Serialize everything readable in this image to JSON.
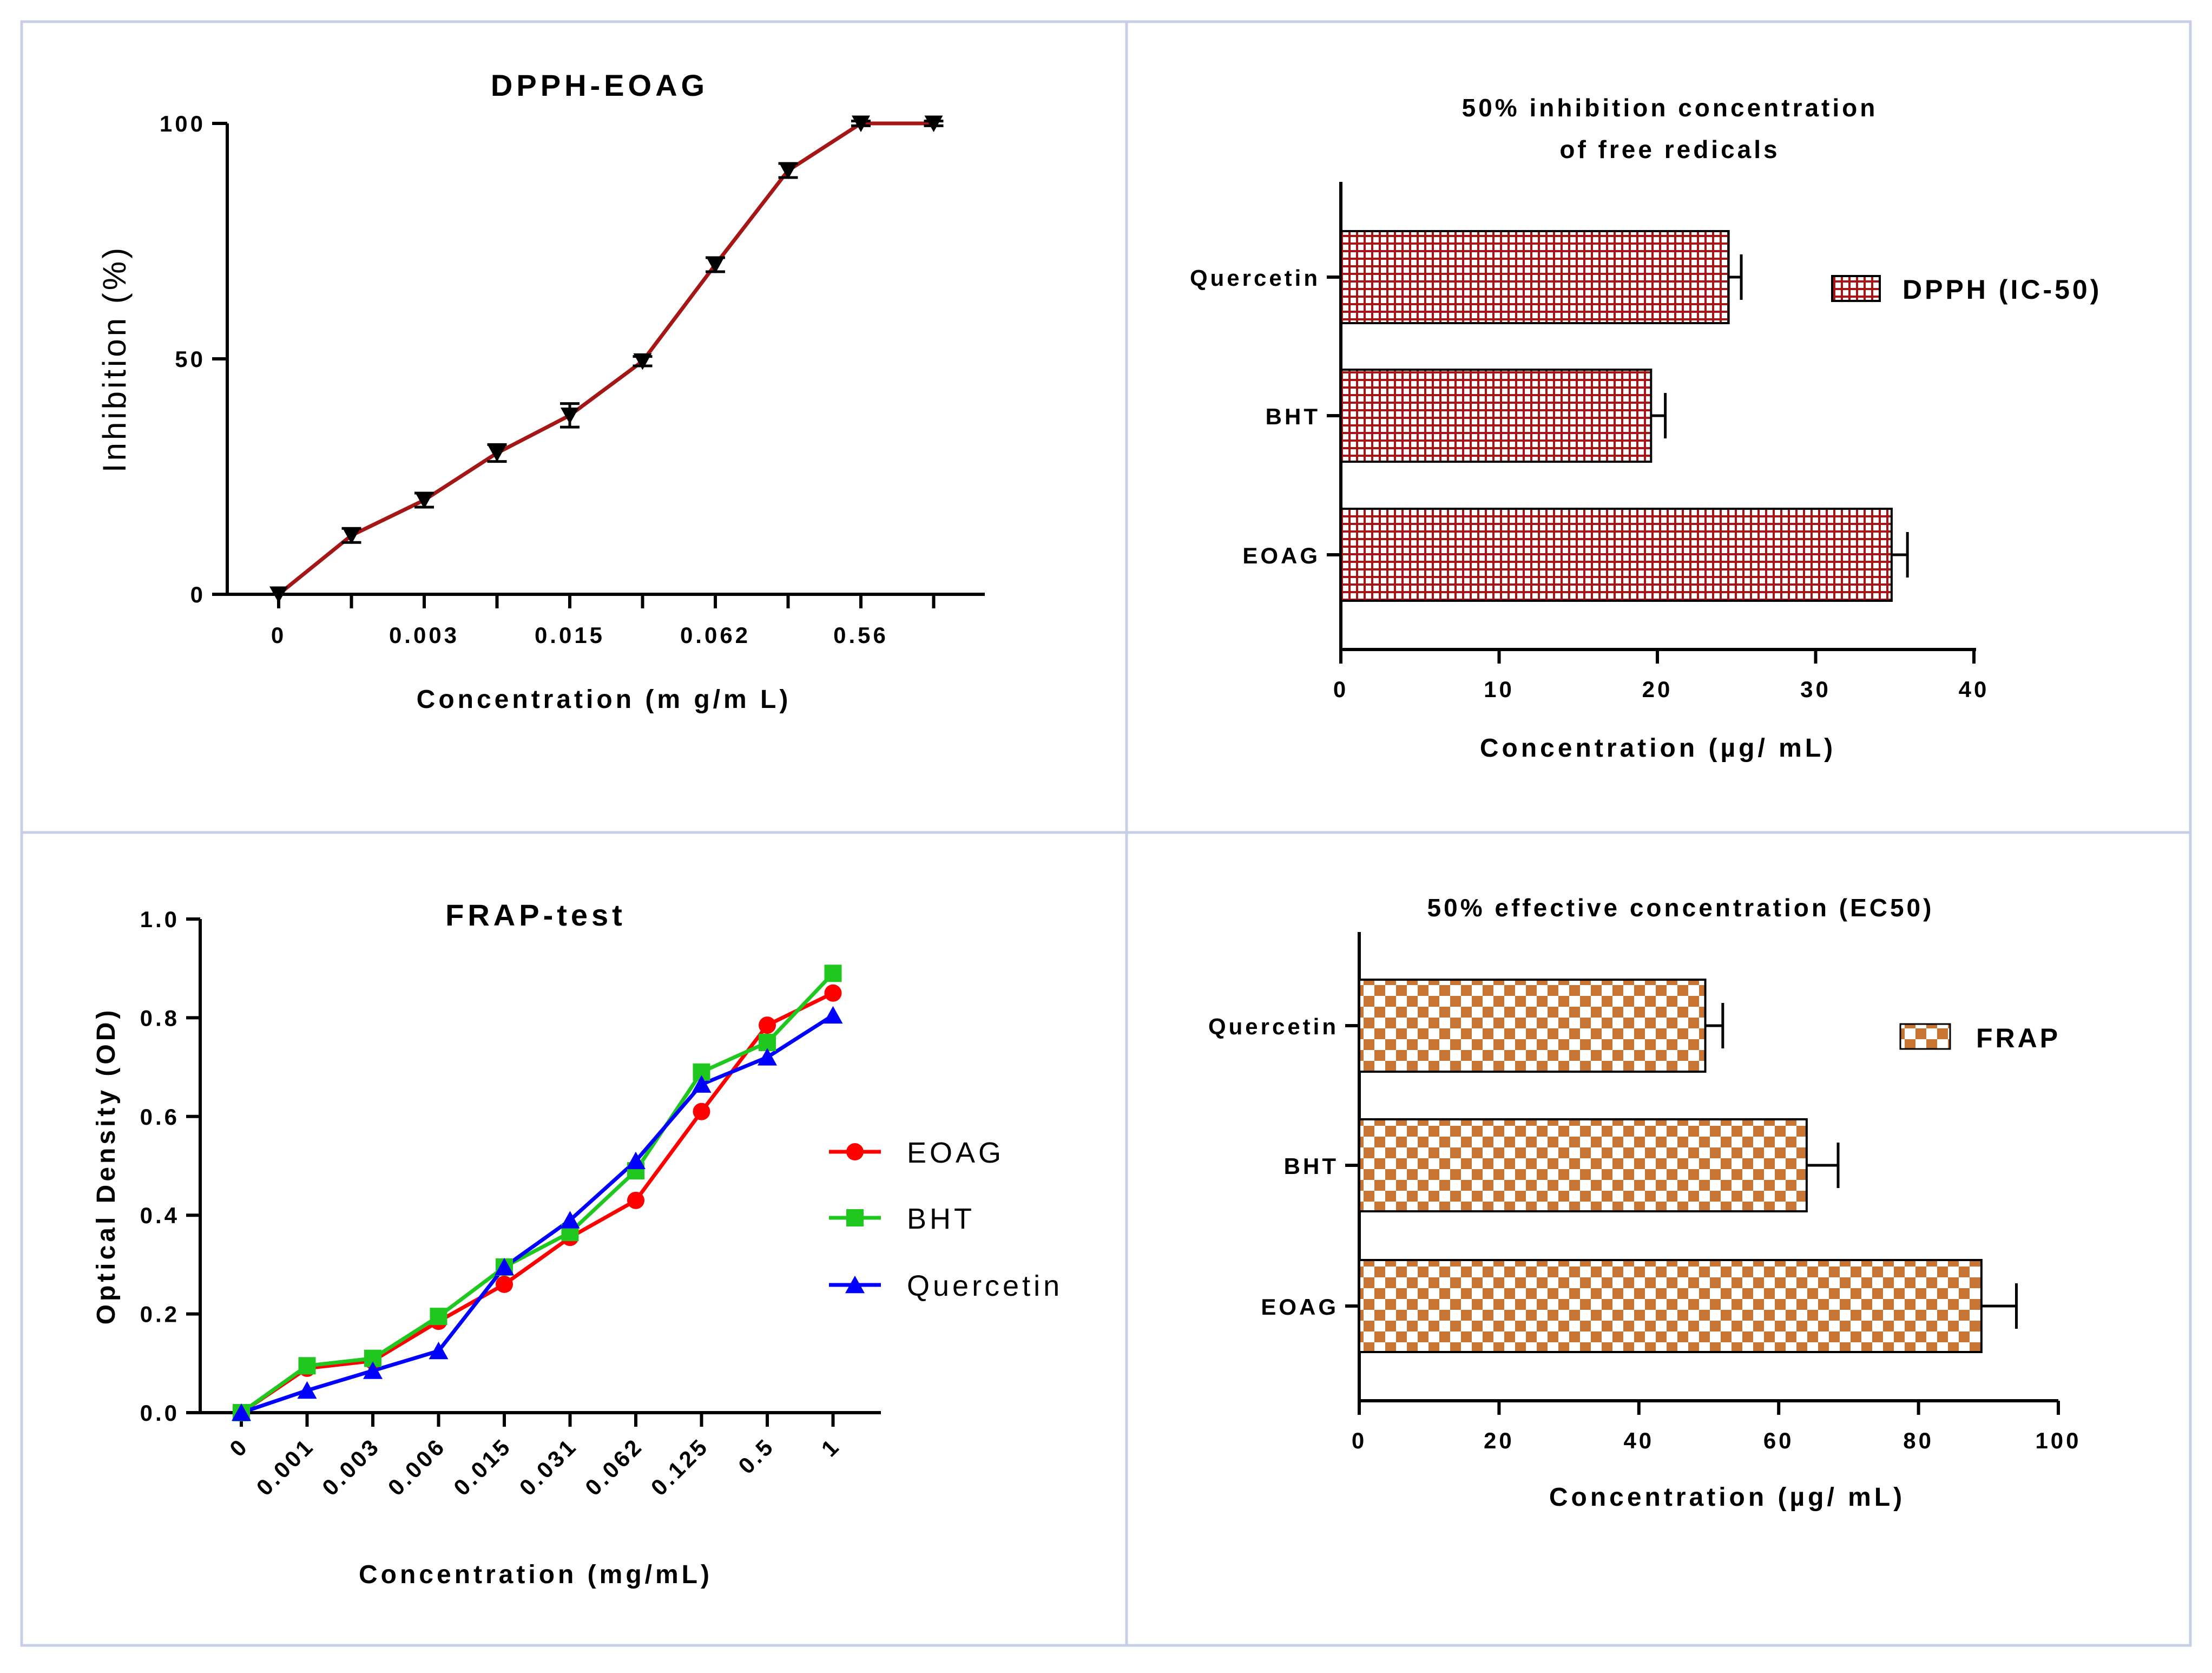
{
  "chart_data": [
    {
      "type": "line",
      "title": "DPPH-EOAG",
      "xlabel": "Concentration (m g/m L)",
      "ylabel": "Inhibition (%)",
      "x_tick_labels": [
        "0",
        "0.003",
        "0.015",
        "0.062",
        "0.56"
      ],
      "x_tick_positions": [
        0,
        2,
        4,
        6,
        8
      ],
      "y_ticks": [
        0,
        50,
        100
      ],
      "ylim": [
        0,
        100
      ],
      "x": [
        0,
        1,
        2,
        3,
        4,
        5,
        6,
        7,
        8,
        9
      ],
      "values": [
        0,
        12.5,
        20,
        30,
        38,
        49.5,
        70,
        90,
        100,
        100
      ],
      "errors": [
        0,
        1.5,
        1.5,
        1.8,
        2.5,
        1.0,
        1.5,
        1.5,
        0.5,
        0.5
      ],
      "marker": "triangle-down",
      "color": "#a51616"
    },
    {
      "type": "bar",
      "orientation": "horizontal",
      "title_lines": [
        "50% inhibition concentration",
        "of free redicals"
      ],
      "xlabel": "Concentration (µg/ mL)",
      "categories": [
        "Quercetin",
        "BHT",
        "EOAG"
      ],
      "values": [
        24.5,
        19.6,
        34.8
      ],
      "errors": [
        0.8,
        0.9,
        1.0
      ],
      "x_ticks": [
        0,
        10,
        20,
        30,
        40
      ],
      "xlim": [
        0,
        40
      ],
      "legend": "DPPH (IC-50)",
      "color": "#a51616"
    },
    {
      "type": "line",
      "title": "FRAP-test",
      "xlabel": "Concentration (mg/mL)",
      "ylabel": "Optical Density (OD)",
      "categories": [
        "0",
        "0.001",
        "0.003",
        "0.006",
        "0.015",
        "0.031",
        "0.062",
        "0.125",
        "0.5",
        "1"
      ],
      "y_ticks": [
        "0.0",
        "0.2",
        "0.4",
        "0.6",
        "0.8",
        "1.0"
      ],
      "ylim": [
        0,
        1.0
      ],
      "series": [
        {
          "name": "EOAG",
          "color": "#ff0000",
          "marker": "circle",
          "values": [
            0.0,
            0.09,
            0.105,
            0.185,
            0.26,
            0.355,
            0.43,
            0.61,
            0.785,
            0.85
          ]
        },
        {
          "name": "BHT",
          "color": "#1fc71f",
          "marker": "square",
          "values": [
            0.0,
            0.095,
            0.11,
            0.195,
            0.295,
            0.365,
            0.49,
            0.69,
            0.75,
            0.89
          ]
        },
        {
          "name": "Quercetin",
          "color": "#0000ff",
          "marker": "triangle",
          "values": [
            0.0,
            0.045,
            0.085,
            0.125,
            0.295,
            0.39,
            0.51,
            0.665,
            0.72,
            0.805
          ]
        }
      ]
    },
    {
      "type": "bar",
      "orientation": "horizontal",
      "title": "50% effective concentration (EC50)",
      "xlabel": "Concentration (µg/ mL)",
      "categories": [
        "Quercetin",
        "BHT",
        "EOAG"
      ],
      "values": [
        49.5,
        64,
        89
      ],
      "errors": [
        2.5,
        4.5,
        5.0
      ],
      "x_ticks": [
        0,
        20,
        40,
        60,
        80,
        100
      ],
      "xlim": [
        0,
        100
      ],
      "legend": "FRAP",
      "color": "#c87533"
    }
  ]
}
